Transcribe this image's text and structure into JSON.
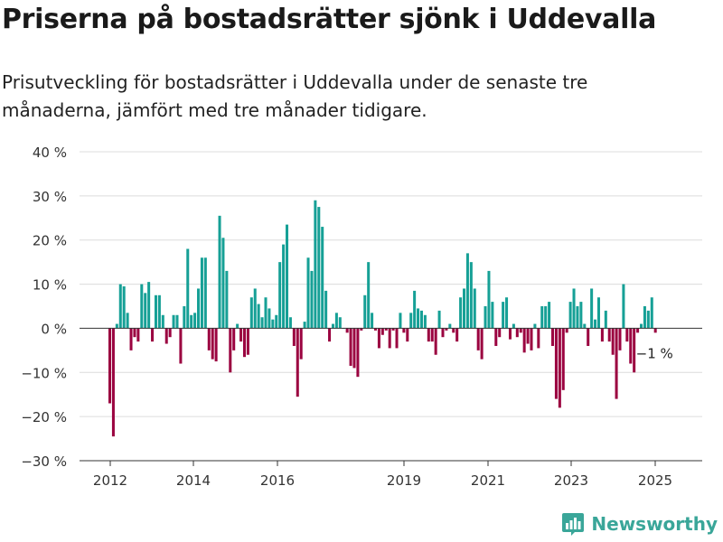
{
  "title": "Priserna på bostadsrätter sjönk i Uddevalla",
  "subtitle": "Prisutveckling för bostadsrätter i Uddevalla under de senaste tre månaderna, jämfört med tre månader tidigare.",
  "brand": {
    "name": "Newsworthy",
    "icon": "bar-chart-logo-icon"
  },
  "colors": {
    "positive": "#16a096",
    "negative": "#9b0340",
    "grid": "#dcdcdc",
    "axis": "#333333"
  },
  "chart_data": {
    "type": "bar",
    "title": "Priserna på bostadsrätter sjönk i Uddevalla",
    "subtitle": "Prisutveckling för bostadsrätter i Uddevalla under de senaste tre månaderna, jämfört med tre månader tidigare.",
    "xlabel": "",
    "ylabel": "",
    "ylim": [
      -30,
      40
    ],
    "yticks": [
      40,
      30,
      20,
      10,
      0,
      -10,
      -20,
      -30
    ],
    "ytick_labels": [
      "40 %",
      "30 %",
      "20 %",
      "10 %",
      "0 %",
      "−10 %",
      "−20 %",
      "−30 %"
    ],
    "xticks": [
      "2012",
      "2014",
      "2016",
      "2019",
      "2021",
      "2023",
      "2025"
    ],
    "grid": true,
    "legend": "none",
    "last_value_label": "−1 %",
    "series": [
      {
        "values": [
          -17,
          -24.5,
          1,
          10,
          9.5,
          3.5,
          -5,
          -2,
          -3,
          10,
          8,
          10.5,
          -3,
          7.5,
          7.5,
          3,
          -3.5,
          -2,
          3,
          3,
          -8,
          5,
          18,
          3,
          3.5,
          9,
          16,
          16,
          -5,
          -7,
          -7.5,
          25.5,
          20.5,
          13,
          -10,
          -5,
          1,
          -3,
          -6.5,
          -6,
          7,
          9,
          5.5,
          2.5,
          7,
          4.5,
          2,
          3,
          15,
          19,
          23.5,
          2.5,
          -4,
          -15.5,
          -7,
          1.5,
          16,
          13,
          29,
          27.5,
          23,
          8.5,
          -3,
          1,
          3.5,
          2.5,
          0,
          -1,
          -8.5,
          -9,
          -11,
          -0.5,
          7.5,
          15,
          3.5,
          -0.5,
          -4.5,
          -1.5,
          -0.5,
          -4.5,
          -0.5,
          -4.5,
          3.5,
          -1,
          -3,
          3.5,
          8.5,
          4.5,
          4,
          3,
          -3,
          -3,
          -6,
          4,
          -2,
          -0.5,
          1,
          -1,
          -3,
          7,
          9,
          17,
          15,
          9,
          -5,
          -7,
          5,
          13,
          6,
          -4,
          -2,
          6,
          7,
          -2.5,
          1,
          -2,
          -1,
          -5.5,
          -3.5,
          -5,
          1,
          -4.5,
          5,
          5,
          6,
          -4,
          -16,
          -18,
          -14,
          -1,
          6,
          9,
          5,
          6,
          1,
          -4,
          9,
          2,
          7,
          -3,
          4,
          -3,
          -6,
          -16,
          -5,
          10,
          -3,
          -8,
          -10,
          -1,
          1,
          5,
          4,
          7,
          -1
        ]
      }
    ]
  }
}
